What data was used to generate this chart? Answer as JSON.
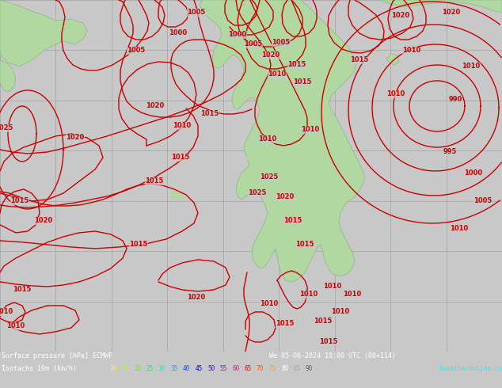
{
  "title_line1": "Surface pressure [hPa] ECMWF",
  "title_line2": "We 05-06-2024 18:00 UTC (00+114)",
  "subtitle": "Isotachs 10m (km/h)",
  "copyright": "©weatheronline.co.uk",
  "legend_values": [
    "10",
    "15",
    "20",
    "25",
    "30",
    "35",
    "40",
    "45",
    "50",
    "55",
    "60",
    "65",
    "70",
    "75",
    "80",
    "85",
    "90"
  ],
  "legend_colors": [
    "#ffff00",
    "#aaff00",
    "#55ff00",
    "#00ff55",
    "#00ffaa",
    "#00aaff",
    "#0055ff",
    "#0000ff",
    "#5500ff",
    "#aa00ff",
    "#ff00aa",
    "#ff0000",
    "#ff5500",
    "#ffaa00",
    "#ffffff",
    "#aaaaaa",
    "#666666"
  ],
  "ocean_color": "#c8c8c8",
  "land_color": "#b0d8a0",
  "contour_color": "#cc0000",
  "grid_color": "#999999",
  "bottom_bg": "#000060",
  "fig_w": 6.34,
  "fig_h": 4.9,
  "dpi": 100
}
